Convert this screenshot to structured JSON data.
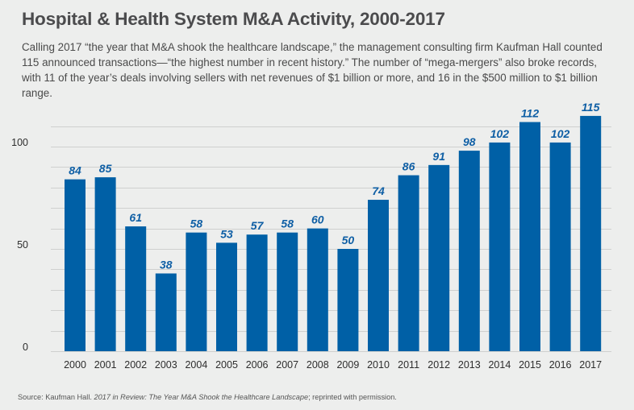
{
  "header": {
    "title": "Hospital & Health System M&A Activity, 2000-2017",
    "description": "Calling 2017 “the year that M&A shook the healthcare landscape,” the management consulting firm Kaufman Hall counted 115 announced transactions—“the highest number in recent history.” The number of “mega-mergers” also broke records, with 11 of the year’s deals involving sellers with net revenues of $1 billion or more, and 16 in the $500 million to $1 billion range."
  },
  "footer": {
    "source_prefix": "Source: Kaufman Hall. ",
    "source_title": "2017 in Review: The Year M&A Shook the Healthcare Landscape",
    "source_suffix": "; reprinted with permission."
  },
  "colors": {
    "bar": "#0060a6",
    "value_label": "#0f5fa5",
    "background": "#edeeed",
    "gridline": "#cfd0cf"
  },
  "chart_data": {
    "type": "bar",
    "title": "Hospital & Health System M&A Activity, 2000-2017",
    "xlabel": "",
    "ylabel": "",
    "categories": [
      "2000",
      "2001",
      "2002",
      "2003",
      "2004",
      "2005",
      "2006",
      "2007",
      "2008",
      "2009",
      "2010",
      "2011",
      "2012",
      "2013",
      "2014",
      "2015",
      "2016",
      "2017"
    ],
    "values": [
      84,
      85,
      61,
      38,
      58,
      53,
      57,
      58,
      60,
      50,
      74,
      86,
      91,
      98,
      102,
      112,
      102,
      115
    ],
    "data_labels": [
      "84",
      "85",
      "61",
      "38",
      "58",
      "53",
      "57",
      "58",
      "60",
      "50",
      "74",
      "86",
      "91",
      "98",
      "102",
      "112",
      "102",
      "115"
    ],
    "ylim": [
      0,
      110
    ],
    "yticks": [
      0,
      50,
      100
    ],
    "ytick_labels": [
      "0",
      "50",
      "100"
    ],
    "gridlines": [
      0,
      10,
      20,
      30,
      40,
      50,
      60,
      70,
      80,
      90,
      100,
      110
    ],
    "grid": true,
    "legend": "none"
  }
}
